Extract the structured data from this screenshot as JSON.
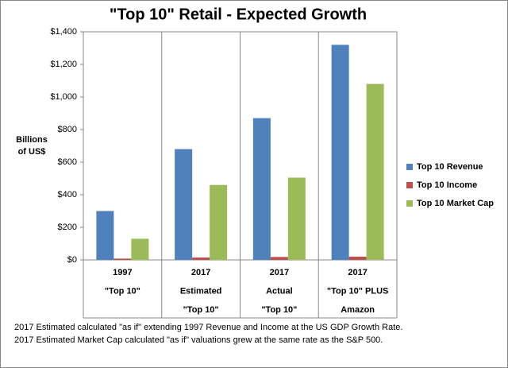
{
  "chart_data": {
    "type": "bar",
    "title": "\"Top 10\" Retail - Expected Growth",
    "y_label": [
      "Billions",
      "of US$"
    ],
    "categories": [
      [
        "1997",
        "\"Top 10\""
      ],
      [
        "2017",
        "Estimated",
        "\"Top 10\""
      ],
      [
        "2017",
        "Actual",
        "\"Top 10\""
      ],
      [
        "2017",
        "\"Top 10\" PLUS",
        "Amazon"
      ]
    ],
    "series": [
      {
        "name": "Top 10 Revenue",
        "color": "#4f81bd",
        "values": [
          300,
          680,
          870,
          1320
        ]
      },
      {
        "name": "Top 10 Income",
        "color": "#c0504d",
        "values": [
          8,
          15,
          18,
          20
        ]
      },
      {
        "name": "Top 10 Market Cap",
        "color": "#9bbb59",
        "values": [
          130,
          460,
          505,
          1080
        ]
      }
    ],
    "ylim": [
      0,
      1400
    ],
    "yticks": [
      {
        "value": 0,
        "label": "$0"
      },
      {
        "value": 200,
        "label": "$200"
      },
      {
        "value": 400,
        "label": "$400"
      },
      {
        "value": 600,
        "label": "$600"
      },
      {
        "value": 800,
        "label": "$800"
      },
      {
        "value": 1000,
        "label": "$1,000"
      },
      {
        "value": 1200,
        "label": "$1,200"
      },
      {
        "value": 1400,
        "label": "$1,400"
      }
    ],
    "grid": false,
    "legend": "right",
    "notes": [
      "2017 Estimated calculated \"as if\" extending 1997 Revenue and Income at the US GDP Growth Rate.",
      "2017 Estimated Market Cap calculated \"as if\" valuations grew at the same rate as the S&P 500."
    ]
  }
}
